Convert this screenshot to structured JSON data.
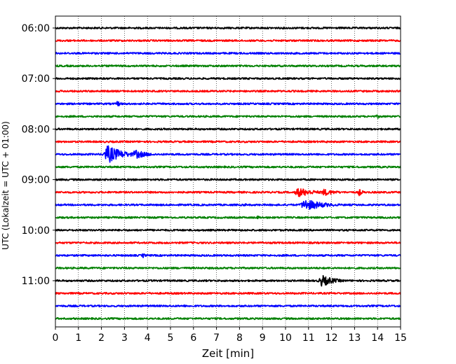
{
  "chart_data": {
    "type": "line",
    "subtype": "helicorder",
    "xlabel": "Zeit  [min]",
    "ylabel": "UTC (Lokalzeit = UTC + 01:00)",
    "xlim": [
      0,
      15
    ],
    "xticks": [
      "0",
      "1",
      "2",
      "3",
      "4",
      "5",
      "6",
      "7",
      "8",
      "9",
      "10",
      "11",
      "12",
      "13",
      "14",
      "15"
    ],
    "vertical_gridlines": "dotted at each minute",
    "trace_interval_minutes": 15,
    "yticks": [
      "06:00",
      "07:00",
      "08:00",
      "09:00",
      "10:00",
      "11:00"
    ],
    "color_cycle": [
      "#000000",
      "#ff0000",
      "#0000ff",
      "#008000"
    ],
    "traces": [
      {
        "start": "06:00",
        "color": "#000000",
        "events": []
      },
      {
        "start": "06:15",
        "color": "#ff0000",
        "events": []
      },
      {
        "start": "06:30",
        "color": "#0000ff",
        "events": []
      },
      {
        "start": "06:45",
        "color": "#008000",
        "events": []
      },
      {
        "start": "07:00",
        "color": "#000000",
        "events": []
      },
      {
        "start": "07:15",
        "color": "#ff0000",
        "events": []
      },
      {
        "start": "07:30",
        "color": "#0000ff",
        "events": [
          {
            "t": 2.7,
            "amp": 0.5,
            "dur": 0.3
          }
        ]
      },
      {
        "start": "07:45",
        "color": "#008000",
        "events": [
          {
            "t": 14.0,
            "amp": 0.35,
            "dur": 0.3
          }
        ]
      },
      {
        "start": "08:00",
        "color": "#000000",
        "events": []
      },
      {
        "start": "08:15",
        "color": "#ff0000",
        "events": [
          {
            "t": 11.8,
            "amp": 0.2,
            "dur": 0.3
          }
        ]
      },
      {
        "start": "08:30",
        "color": "#0000ff",
        "events": [
          {
            "t": 2.3,
            "amp": 1.4,
            "dur": 1.2
          },
          {
            "t": 3.5,
            "amp": 0.7,
            "dur": 1.0
          }
        ]
      },
      {
        "start": "08:45",
        "color": "#008000",
        "events": []
      },
      {
        "start": "09:00",
        "color": "#000000",
        "events": []
      },
      {
        "start": "09:15",
        "color": "#ff0000",
        "events": [
          {
            "t": 10.6,
            "amp": 0.75,
            "dur": 1.2
          },
          {
            "t": 11.7,
            "amp": 0.55,
            "dur": 1.0
          },
          {
            "t": 13.2,
            "amp": 0.6,
            "dur": 0.3
          }
        ]
      },
      {
        "start": "09:30",
        "color": "#0000ff",
        "events": [
          {
            "t": 8.2,
            "amp": 0.25,
            "dur": 0.4
          },
          {
            "t": 10.9,
            "amp": 0.9,
            "dur": 1.5
          }
        ]
      },
      {
        "start": "09:45",
        "color": "#008000",
        "events": [
          {
            "t": 8.8,
            "amp": 0.3,
            "dur": 0.3
          }
        ]
      },
      {
        "start": "10:00",
        "color": "#000000",
        "events": []
      },
      {
        "start": "10:15",
        "color": "#ff0000",
        "events": [
          {
            "t": 9.0,
            "amp": 0.2,
            "dur": 0.2
          }
        ]
      },
      {
        "start": "10:30",
        "color": "#0000ff",
        "events": [
          {
            "t": 3.8,
            "amp": 0.45,
            "dur": 0.2
          }
        ]
      },
      {
        "start": "10:45",
        "color": "#008000",
        "events": [
          {
            "t": 3.7,
            "amp": 0.25,
            "dur": 0.2
          }
        ]
      },
      {
        "start": "11:00",
        "color": "#000000",
        "events": [
          {
            "t": 11.6,
            "amp": 0.9,
            "dur": 1.0
          }
        ]
      },
      {
        "start": "11:15",
        "color": "#ff0000",
        "events": []
      },
      {
        "start": "11:30",
        "color": "#0000ff",
        "events": [
          {
            "t": 5.6,
            "amp": 0.2,
            "dur": 0.2
          }
        ]
      },
      {
        "start": "11:45",
        "color": "#008000",
        "events": [
          {
            "t": 13.0,
            "amp": 0.2,
            "dur": 0.2
          }
        ]
      }
    ]
  }
}
